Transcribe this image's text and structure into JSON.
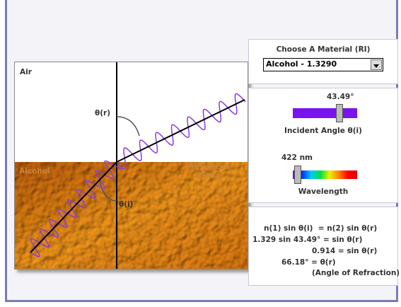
{
  "left_panel": {
    "top_label": "Air",
    "bottom_label": "Alcohol",
    "refracted_label": "Refracted Wave",
    "angle_r_label": "θ(r)",
    "angle_i_label": "θ(i)"
  },
  "material": {
    "title": "Choose A Material (RI)",
    "selected": "Alcohol - 1.3290"
  },
  "controls": {
    "angle_value": "43.49°",
    "angle_label": "Incident Angle θ(i)",
    "wavelength_value": "422 nm",
    "wavelength_label": "Wavelength"
  },
  "equations": [
    "n(1) sin θ(i)  = n(2) sin θ(r)",
    "1.329 sin 43.49° = sin θ(r)",
    "0.914 = sin θ(r)",
    "66.18° = θ(r)",
    "(Angle of Refraction)"
  ]
}
